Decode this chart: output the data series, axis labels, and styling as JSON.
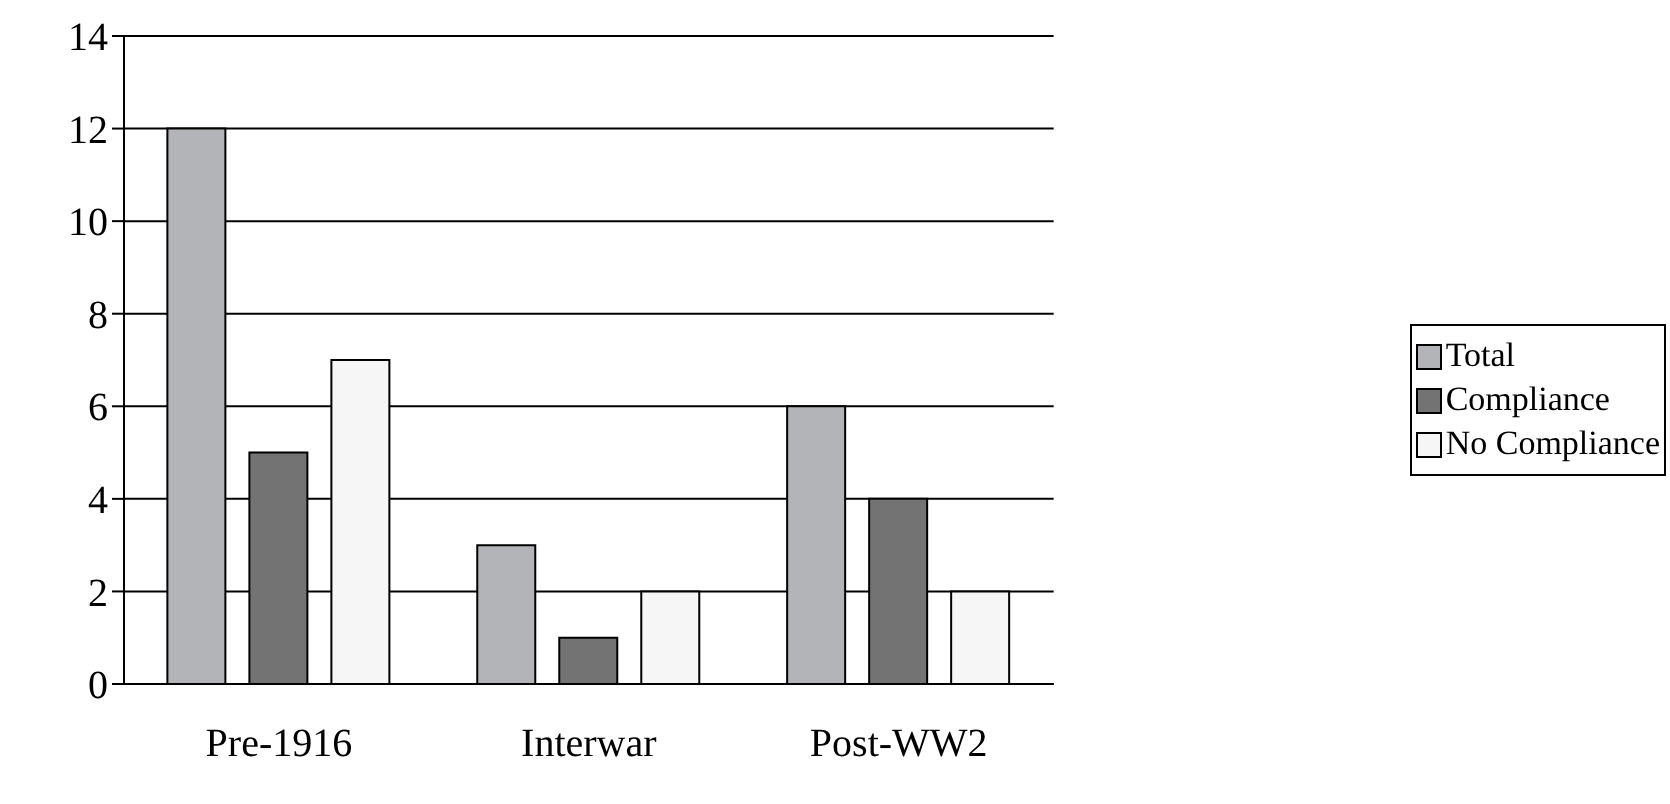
{
  "chart_data": {
    "type": "bar",
    "categories": [
      "Pre-1916",
      "Interwar",
      "Post-WW2"
    ],
    "series": [
      {
        "name": "Total",
        "color": "#b2b4b8",
        "values": [
          12,
          3,
          6
        ]
      },
      {
        "name": "Compliance",
        "color": "#737373",
        "values": [
          5,
          1,
          4
        ]
      },
      {
        "name": "No Compliance",
        "color": "#f6f6f6",
        "values": [
          7,
          2,
          2
        ]
      }
    ],
    "ylim": [
      0,
      14
    ],
    "yticks": [
      0,
      2,
      4,
      6,
      8,
      10,
      12,
      14
    ],
    "grid": "y",
    "legend": "right"
  }
}
